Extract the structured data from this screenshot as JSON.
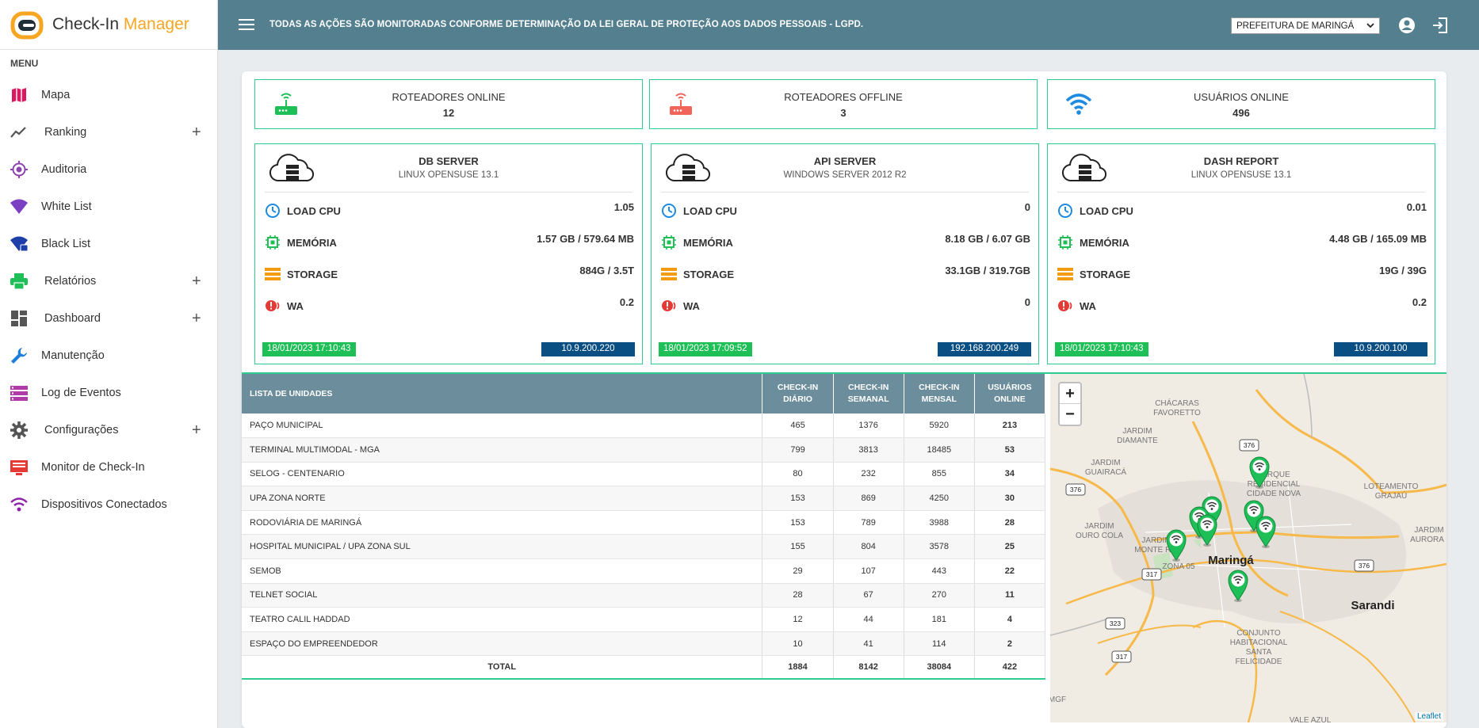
{
  "brand": {
    "name_part1": "Check-In",
    "name_part2": "Manager"
  },
  "sidebar": {
    "menu_title": "MENU",
    "items": [
      {
        "label": "Mapa",
        "icon": "map-icon",
        "expandable": false
      },
      {
        "label": "Ranking",
        "icon": "chart-line-icon",
        "expandable": true
      },
      {
        "label": "Auditoria",
        "icon": "crosshair-icon",
        "expandable": false
      },
      {
        "label": "White List",
        "icon": "wifi-icon",
        "expandable": false
      },
      {
        "label": "Black List",
        "icon": "wifi-lock-icon",
        "expandable": false
      },
      {
        "label": "Relatórios",
        "icon": "printer-icon",
        "expandable": true
      },
      {
        "label": "Dashboard",
        "icon": "dashboard-icon",
        "expandable": true
      },
      {
        "label": "Manutenção",
        "icon": "wrench-icon",
        "expandable": false
      },
      {
        "label": "Log de Eventos",
        "icon": "list-icon",
        "expandable": false
      },
      {
        "label": "Configurações",
        "icon": "gear-icon",
        "expandable": true
      },
      {
        "label": "Monitor de Check-In",
        "icon": "monitor-icon",
        "expandable": false
      },
      {
        "label": "Dispositivos Conectados",
        "icon": "wifi-icon",
        "expandable": false
      }
    ],
    "expand_symbol": "+"
  },
  "topbar": {
    "notice": "TODAS AS AÇÕES SÃO MONITORADAS CONFORME DETERMINAÇÃO DA LEI GERAL DE PROTEÇÃO AOS DADOS PESSOAIS - LGPD.",
    "city_selected": "PREFEITURA DE MARINGÁ"
  },
  "stats": [
    {
      "title": "ROTEADORES ONLINE",
      "value": "12",
      "color": "#1fbf57"
    },
    {
      "title": "ROTEADORES OFFLINE",
      "value": "3",
      "color": "#f0645a"
    },
    {
      "title": "USUÁRIOS ONLINE",
      "value": "496",
      "color": "#1e8be0"
    }
  ],
  "servers": [
    {
      "name": "DB SERVER",
      "os": "LINUX OPENSUSE 13.1",
      "rows": [
        {
          "label": "LOAD CPU",
          "value": "1.05"
        },
        {
          "label": "MEMÓRIA",
          "value": "1.57 GB / 579.64 MB"
        },
        {
          "label": "STORAGE",
          "value": "884G / 3.5T"
        },
        {
          "label": "WA",
          "value": "0.2"
        }
      ],
      "date": "18/01/2023 17:10:43",
      "ip": "10.9.200.220"
    },
    {
      "name": "API SERVER",
      "os": "WINDOWS SERVER 2012 R2",
      "rows": [
        {
          "label": "LOAD CPU",
          "value": "0"
        },
        {
          "label": "MEMÓRIA",
          "value": "8.18 GB / 6.07 GB"
        },
        {
          "label": "STORAGE",
          "value": "33.1GB / 319.7GB"
        },
        {
          "label": "WA",
          "value": "0"
        }
      ],
      "date": "18/01/2023 17:09:52",
      "ip": "192.168.200.249"
    },
    {
      "name": "DASH REPORT",
      "os": "LINUX OPENSUSE 13.1",
      "rows": [
        {
          "label": "LOAD CPU",
          "value": "0.01"
        },
        {
          "label": "MEMÓRIA",
          "value": "4.48 GB / 165.09 MB"
        },
        {
          "label": "STORAGE",
          "value": "19G / 39G"
        },
        {
          "label": "WA",
          "value": "0.2"
        }
      ],
      "date": "18/01/2023 17:10:43",
      "ip": "10.9.200.100"
    }
  ],
  "units_table": {
    "headers": [
      "LISTA DE UNIDADES",
      "CHECK-IN DIÁRIO",
      "CHECK-IN SEMANAL",
      "CHECK-IN MENSAL",
      "USUÁRIOS ONLINE"
    ],
    "rows": [
      [
        "PAÇO MUNICIPAL",
        "465",
        "1376",
        "5920",
        "213"
      ],
      [
        "TERMINAL MULTIMODAL - MGA",
        "799",
        "3813",
        "18485",
        "53"
      ],
      [
        "SELOG - CENTENARIO",
        "80",
        "232",
        "855",
        "34"
      ],
      [
        "UPA ZONA NORTE",
        "153",
        "869",
        "4250",
        "30"
      ],
      [
        "RODOVIÁRIA DE MARINGÁ",
        "153",
        "789",
        "3988",
        "28"
      ],
      [
        "HOSPITAL MUNICIPAL / UPA ZONA SUL",
        "155",
        "804",
        "3578",
        "25"
      ],
      [
        "SEMOB",
        "29",
        "107",
        "443",
        "22"
      ],
      [
        "TELNET SOCIAL",
        "28",
        "67",
        "270",
        "11"
      ],
      [
        "TEATRO CALIL HADDAD",
        "12",
        "44",
        "181",
        "4"
      ],
      [
        "ESPAÇO DO EMPREENDEDOR",
        "10",
        "41",
        "114",
        "2"
      ]
    ],
    "total": [
      "TOTAL",
      "1884",
      "8142",
      "38084",
      "422"
    ]
  },
  "map": {
    "zoom_in": "+",
    "zoom_out": "−",
    "attribution": "Leaflet",
    "labels": [
      {
        "text": "CHÁCARAS FAVORETTO"
      },
      {
        "text": "JARDIM DIAMANTE"
      },
      {
        "text": "JARDIM GUAIRACÁ"
      },
      {
        "text": "PARQUE RESIDENCIAL CIDADE NOVA"
      },
      {
        "text": "LOTEAMENTO GRAJAÚ"
      },
      {
        "text": "JARDIM OURO COLA"
      },
      {
        "text": "JARDIM MONTE REI"
      },
      {
        "text": "Maringá"
      },
      {
        "text": "ZONA 05"
      },
      {
        "text": "Sarandi"
      },
      {
        "text": "JARDIM AURORA I"
      },
      {
        "text": "CONJUNTO HABITACIONAL SANTA FELICIDADE"
      },
      {
        "text": "VALE AZUL"
      },
      {
        "text": "MGF"
      }
    ],
    "shields": [
      "376",
      "376",
      "376",
      "317",
      "323",
      "317"
    ]
  }
}
